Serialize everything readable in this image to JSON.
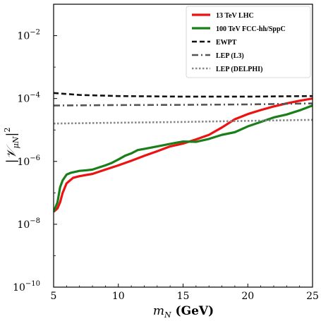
{
  "chart_data": {
    "type": "line",
    "title": "",
    "xlabel": "m_N (GeV)",
    "ylabel": "|V_μN|^2",
    "xlim": [
      5,
      25
    ],
    "ylim_log10": [
      -10,
      -1
    ],
    "yscale": "log",
    "grid": false,
    "legend_placement": "top-right",
    "x_ticks": [
      "5",
      "10",
      "15",
      "20",
      "25"
    ],
    "y_ticks": [
      {
        "base": "10",
        "exp": "−10",
        "log": -10
      },
      {
        "base": "10",
        "exp": "−8",
        "log": -8
      },
      {
        "base": "10",
        "exp": "−6",
        "log": -6
      },
      {
        "base": "10",
        "exp": "−4",
        "log": -4
      },
      {
        "base": "10",
        "exp": "−2",
        "log": -2
      }
    ],
    "series": [
      {
        "name": "13 TeV LHC",
        "color": "#ee1111",
        "style": "solid",
        "width": 3.2,
        "x": [
          5.0,
          5.3,
          5.5,
          5.7,
          6.0,
          6.5,
          7.0,
          8.0,
          9.0,
          10.0,
          11.0,
          12.0,
          13.0,
          14.0,
          15.0,
          16.0,
          17.0,
          18.0,
          19.0,
          20.0,
          21.0,
          22.0,
          23.0,
          24.0,
          25.0
        ],
        "y": [
          2.5e-08,
          3.2e-08,
          5e-08,
          1e-07,
          2e-07,
          3e-07,
          3.4e-07,
          4e-07,
          5.5e-07,
          7.5e-07,
          1.05e-06,
          1.5e-06,
          2.1e-06,
          3e-06,
          3.7e-06,
          5e-06,
          7e-06,
          1.2e-05,
          2.2e-05,
          3.2e-05,
          4.3e-05,
          5.6e-05,
          7e-05,
          8.5e-05,
          0.0001
        ]
      },
      {
        "name": "100 TeV FCC-hh/SppC",
        "color": "#1a7f1a",
        "style": "solid",
        "width": 3.2,
        "x": [
          5.0,
          5.3,
          5.5,
          5.7,
          6.0,
          6.3,
          7.0,
          7.5,
          8.0,
          9.0,
          9.5,
          10.0,
          10.5,
          11.0,
          11.5,
          12.0,
          13.0,
          14.0,
          15.0,
          16.0,
          17.0,
          18.0,
          19.0,
          20.0,
          21.0,
          22.0,
          23.0,
          24.0,
          25.0
        ],
        "y": [
          2.5e-08,
          5e-08,
          1.5e-07,
          2.5e-07,
          3.8e-07,
          4.3e-07,
          5e-07,
          5.2e-07,
          5.5e-07,
          7.5e-07,
          9e-07,
          1.15e-06,
          1.5e-06,
          1.8e-06,
          2.3e-06,
          2.5e-06,
          3e-06,
          3.6e-06,
          4.3e-06,
          4.2e-06,
          5.2e-06,
          7e-06,
          8.5e-06,
          1.3e-05,
          1.8e-05,
          2.5e-05,
          3.1e-05,
          4.2e-05,
          6e-05
        ]
      },
      {
        "name": "EWPT",
        "color": "#111111",
        "style": "dashed",
        "width": 2.6,
        "x": [
          5,
          7,
          10,
          15,
          20,
          25
        ],
        "y": [
          0.00015,
          0.00013,
          0.00012,
          0.000115,
          0.000115,
          0.00012
        ]
      },
      {
        "name": "LEP (L3)",
        "color": "#555555",
        "style": "dashdot",
        "width": 2.6,
        "x": [
          5,
          10,
          15,
          20,
          25
        ],
        "y": [
          6e-05,
          6.2e-05,
          6.3e-05,
          6.5e-05,
          7e-05
        ]
      },
      {
        "name": "LEP (DELPHI)",
        "color": "#888888",
        "style": "dotted",
        "width": 2.6,
        "x": [
          5,
          10,
          15,
          20,
          25
        ],
        "y": [
          1.6e-05,
          1.7e-05,
          1.8e-05,
          1.95e-05,
          2.1e-05
        ]
      }
    ]
  }
}
